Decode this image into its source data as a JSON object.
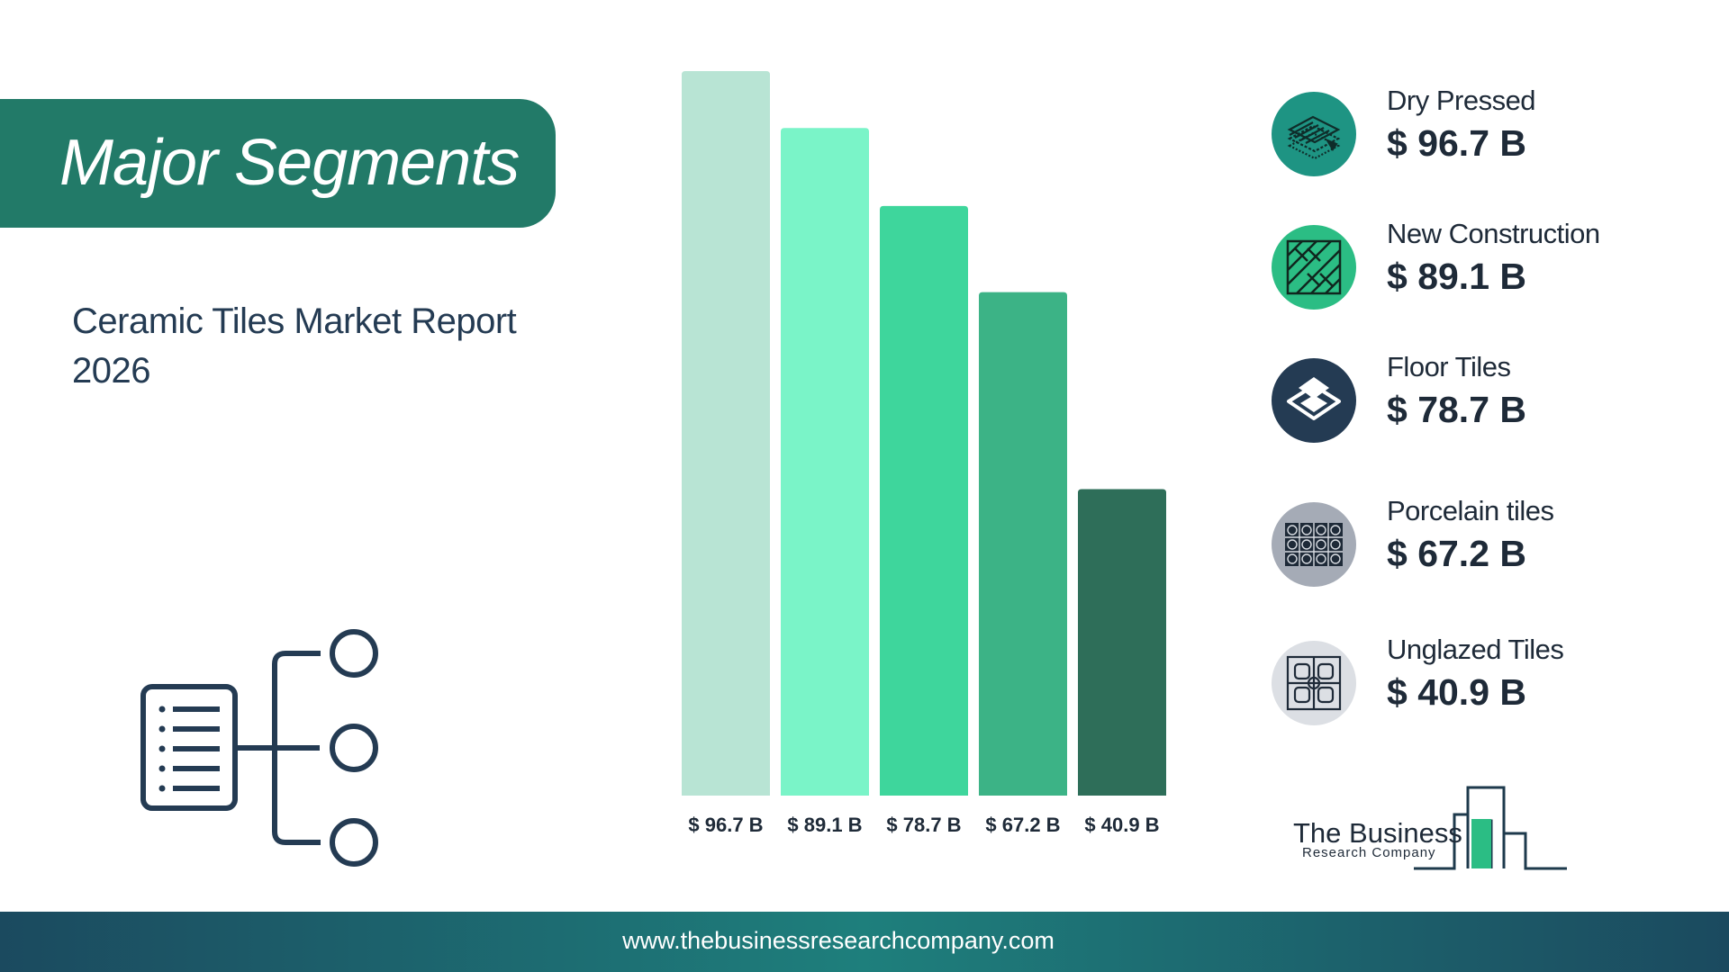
{
  "header": {
    "title": "Major Segments"
  },
  "subtitle": "Ceramic Tiles Market Report 2026",
  "chart_data": {
    "type": "bar",
    "title": "",
    "xlabel": "",
    "ylabel": "",
    "ylim": [
      0,
      96.7
    ],
    "categories": [
      "Dry Pressed",
      "New Construction",
      "Floor Tiles",
      "Porcelain tiles",
      "Unglazed Tiles"
    ],
    "values": [
      96.7,
      89.1,
      78.7,
      67.2,
      40.9
    ],
    "value_labels": [
      "$ 96.7 B",
      "$ 89.1 B",
      "$ 78.7 B",
      "$ 67.2 B",
      "$ 40.9 B"
    ],
    "colors": [
      "#b8e4d4",
      "#7af4c8",
      "#3ed69c",
      "#3cb386",
      "#2e6e59"
    ],
    "grid": false,
    "legend": "right"
  },
  "legend": [
    {
      "name": "Dry Pressed",
      "value": "$ 96.7 B",
      "icon": "dry-pressed-tile-icon",
      "circle_color": "#1e9483"
    },
    {
      "name": "New Construction",
      "value": "$ 89.1 B",
      "icon": "parquet-pattern-icon",
      "circle_color": "#2bbd84"
    },
    {
      "name": "Floor Tiles",
      "value": "$ 78.7 B",
      "icon": "floor-tile-stack-icon",
      "circle_color": "#243b53"
    },
    {
      "name": "Porcelain tiles",
      "value": "$ 67.2 B",
      "icon": "porcelain-pattern-icon",
      "circle_color": "#a5abb6"
    },
    {
      "name": "Unglazed Tiles",
      "value": "$ 40.9 B",
      "icon": "unglazed-pattern-icon",
      "circle_color": "#dcdfe4"
    }
  ],
  "logo": {
    "line1": "The Business",
    "line2": "Research Company"
  },
  "footer": {
    "url": "www.thebusinessresearchcompany.com"
  }
}
